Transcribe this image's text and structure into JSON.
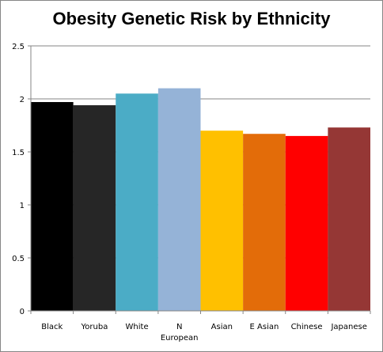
{
  "chart_data": {
    "type": "bar",
    "title": "Obesity Genetic Risk by Ethnicity",
    "xlabel": "",
    "ylabel": "",
    "ylim": [
      0,
      2.5
    ],
    "yticks": [
      "0",
      "0.5",
      "1",
      "1.5",
      "2",
      "2.5"
    ],
    "grid": true,
    "legend": "none",
    "categories": [
      [
        "Black"
      ],
      [
        "Yoruba"
      ],
      [
        "White"
      ],
      [
        "N",
        "European"
      ],
      [
        "Asian"
      ],
      [
        "E Asian"
      ],
      [
        "Chinese"
      ],
      [
        "Japanese"
      ]
    ],
    "values": [
      1.97,
      1.94,
      2.05,
      2.1,
      1.7,
      1.67,
      1.65,
      1.73
    ],
    "colors": [
      "#000000",
      "#262626",
      "#4bacc6",
      "#95b3d7",
      "#ffc000",
      "#e36c09",
      "#ff0000",
      "#953735"
    ]
  }
}
